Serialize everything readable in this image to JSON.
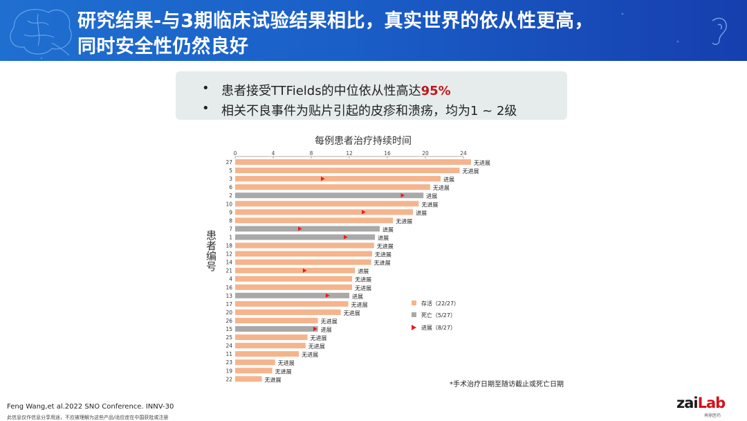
{
  "header": {
    "title_line1": "研究结果-与3期临床试验结果相比，真实世界的依从性更高，",
    "title_line2": "同时安全性仍然良好"
  },
  "bullets": [
    {
      "dot": "•",
      "text": "患者接受TTFields的中位依从性高达",
      "highlight": "95%"
    },
    {
      "dot": "•",
      "text": "相关不良事件为贴片引起的皮疹和溃疡，均为1 ~ 2级",
      "highlight": ""
    }
  ],
  "chart_data": {
    "type": "bar",
    "orientation": "horizontal",
    "title": "每例患者治疗持续时间",
    "ylabel": "患者编号",
    "xlim": [
      0,
      24
    ],
    "xticks": [
      0,
      4,
      8,
      12,
      16,
      20,
      24
    ],
    "colors": {
      "alive": "#f5b48c",
      "dead": "#a9a9a9",
      "progression": "#e81e1e"
    },
    "patients": [
      {
        "id": "27",
        "duration": 24.8,
        "status": "alive",
        "progression_at": null,
        "label": "无进展"
      },
      {
        "id": "5",
        "duration": 23.6,
        "status": "alive",
        "progression_at": null,
        "label": "无进展"
      },
      {
        "id": "3",
        "duration": 21.6,
        "status": "alive",
        "progression_at": 9.2,
        "label": "进展"
      },
      {
        "id": "6",
        "duration": 20.5,
        "status": "alive",
        "progression_at": null,
        "label": "无进展"
      },
      {
        "id": "2",
        "duration": 19.8,
        "status": "dead",
        "progression_at": 17.6,
        "label": "进展"
      },
      {
        "id": "10",
        "duration": 19.3,
        "status": "alive",
        "progression_at": null,
        "label": "无进展"
      },
      {
        "id": "9",
        "duration": 18.7,
        "status": "alive",
        "progression_at": 13.5,
        "label": "进展"
      },
      {
        "id": "8",
        "duration": 16.6,
        "status": "alive",
        "progression_at": null,
        "label": "无进展"
      },
      {
        "id": "7",
        "duration": 15.2,
        "status": "dead",
        "progression_at": 6.8,
        "label": "进展"
      },
      {
        "id": "1",
        "duration": 14.7,
        "status": "dead",
        "progression_at": 11.6,
        "label": "进展"
      },
      {
        "id": "18",
        "duration": 14.6,
        "status": "alive",
        "progression_at": null,
        "label": "无进展"
      },
      {
        "id": "12",
        "duration": 14.4,
        "status": "alive",
        "progression_at": null,
        "label": "无进展"
      },
      {
        "id": "14",
        "duration": 14.3,
        "status": "alive",
        "progression_at": null,
        "label": "无进展"
      },
      {
        "id": "21",
        "duration": 12.6,
        "status": "alive",
        "progression_at": 7.3,
        "label": "进展"
      },
      {
        "id": "4",
        "duration": 12.3,
        "status": "alive",
        "progression_at": null,
        "label": "无进展"
      },
      {
        "id": "16",
        "duration": 12.3,
        "status": "alive",
        "progression_at": null,
        "label": "无进展"
      },
      {
        "id": "13",
        "duration": 12.0,
        "status": "dead",
        "progression_at": 9.7,
        "label": "进展"
      },
      {
        "id": "17",
        "duration": 11.9,
        "status": "alive",
        "progression_at": null,
        "label": "无进展"
      },
      {
        "id": "20",
        "duration": 11.1,
        "status": "alive",
        "progression_at": null,
        "label": "无进展"
      },
      {
        "id": "26",
        "duration": 8.7,
        "status": "alive",
        "progression_at": null,
        "label": "无进展"
      },
      {
        "id": "15",
        "duration": 8.7,
        "status": "dead",
        "progression_at": 8.4,
        "label": "进展"
      },
      {
        "id": "25",
        "duration": 7.6,
        "status": "alive",
        "progression_at": null,
        "label": "无进展"
      },
      {
        "id": "24",
        "duration": 7.4,
        "status": "alive",
        "progression_at": null,
        "label": "无进展"
      },
      {
        "id": "11",
        "duration": 6.7,
        "status": "alive",
        "progression_at": null,
        "label": "无进展"
      },
      {
        "id": "23",
        "duration": 4.2,
        "status": "alive",
        "progression_at": null,
        "label": "无进展"
      },
      {
        "id": "19",
        "duration": 3.9,
        "status": "alive",
        "progression_at": null,
        "label": "无进展"
      },
      {
        "id": "22",
        "duration": 2.8,
        "status": "alive",
        "progression_at": null,
        "label": "无进展"
      }
    ],
    "legend": [
      {
        "key": "alive",
        "label": "存活（22/27）"
      },
      {
        "key": "dead",
        "label": "死亡（5/27）"
      },
      {
        "key": "progression",
        "label": "进展（8/27）"
      }
    ],
    "footnote": "*手术治疗日期至随访截止或死亡日期"
  },
  "citation": "Feng Wang,et al.2022 SNO Conference. INNV-30",
  "disclaimer": "此信息仅作信息分享用途，不应被理解为这些产品/适应症在中国获批或注册",
  "logo": {
    "prefix": "zai",
    "suffix": "Lab",
    "sub": "再鼎医药"
  }
}
